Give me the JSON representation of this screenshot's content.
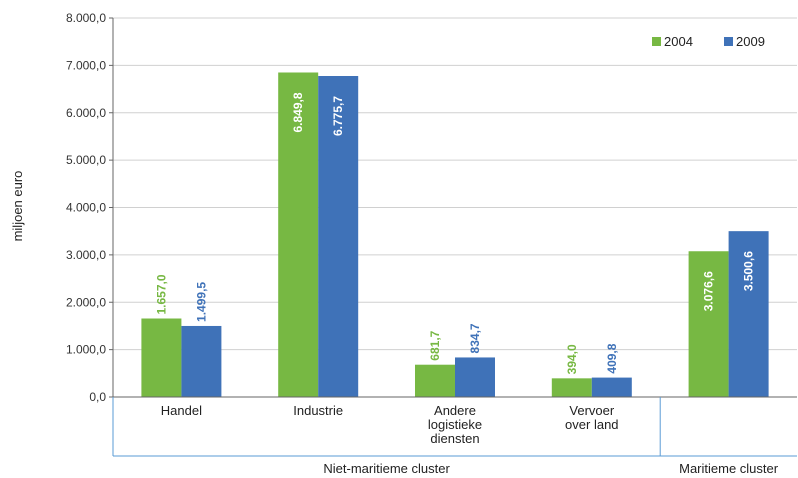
{
  "chart_data": {
    "type": "bar",
    "ylabel": "miljoen euro",
    "ylim": [
      0,
      8000
    ],
    "yticks": [
      0,
      1000,
      2000,
      3000,
      4000,
      5000,
      6000,
      7000,
      8000
    ],
    "ytick_labels": [
      "0,0",
      "1.000,0",
      "2.000,0",
      "3.000,0",
      "4.000,0",
      "5.000,0",
      "6.000,0",
      "7.000,0",
      "8.000,0"
    ],
    "grid": true,
    "legend_position": "top-right",
    "categories": [
      [
        "Handel"
      ],
      [
        "Industrie"
      ],
      [
        "Andere",
        "logistieke",
        "diensten"
      ],
      [
        "Vervoer",
        "over land"
      ],
      [
        ""
      ]
    ],
    "groups": [
      {
        "label": "Niet-maritieme cluster",
        "span": [
          0,
          3
        ]
      },
      {
        "label": "Maritieme cluster",
        "span": [
          4,
          4
        ]
      }
    ],
    "series": [
      {
        "name": "2004",
        "color": "#77b843",
        "values": [
          1657.0,
          6849.8,
          681.7,
          394.0,
          3076.6
        ],
        "labels": [
          "1.657,0",
          "6.849,8",
          "681,7",
          "394,0",
          "3.076,6"
        ]
      },
      {
        "name": "2009",
        "color": "#3f72b8",
        "values": [
          1499.5,
          6775.7,
          834.7,
          409.8,
          3500.6
        ],
        "labels": [
          "1.499,5",
          "6.775,7",
          "834,7",
          "409,8",
          "3.500,6"
        ]
      }
    ]
  }
}
